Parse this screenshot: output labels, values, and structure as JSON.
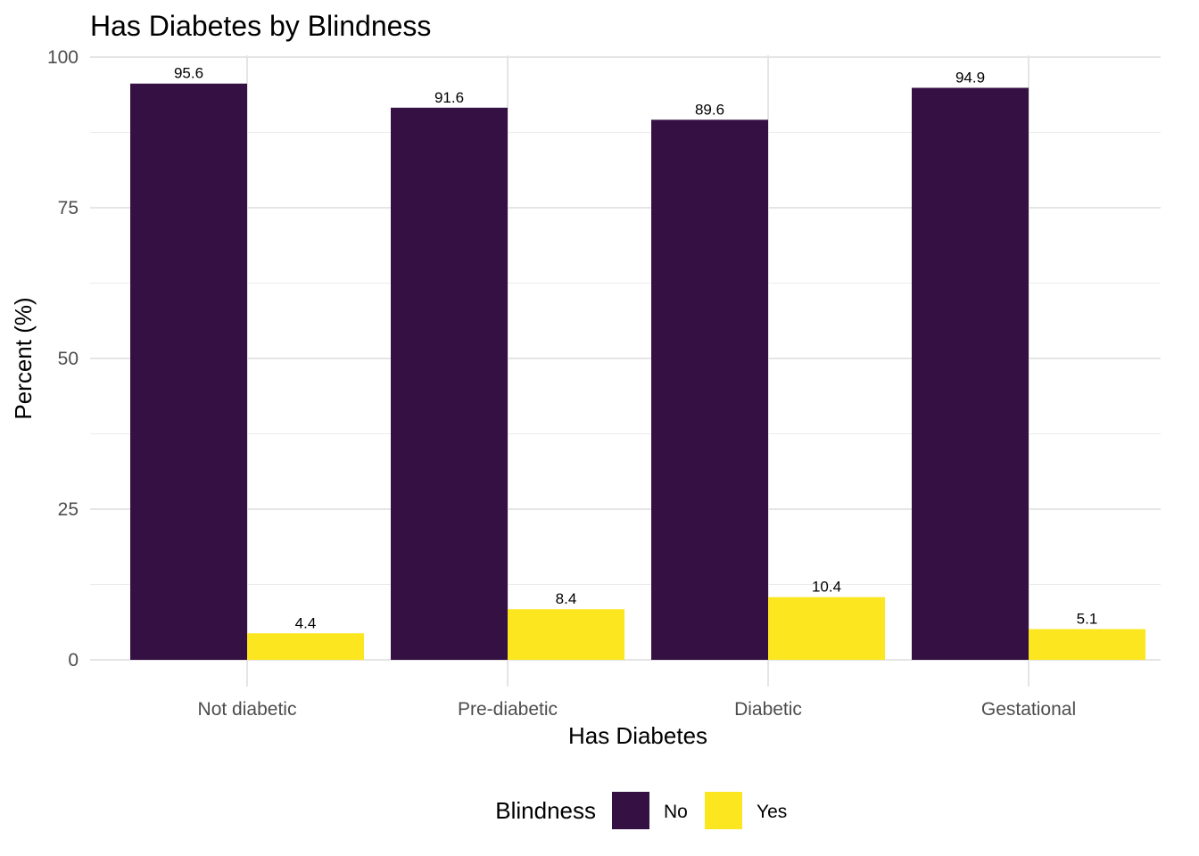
{
  "chart_data": {
    "type": "bar",
    "title": "Has Diabetes by Blindness",
    "xlabel": "Has Diabetes",
    "ylabel": "Percent (%)",
    "categories": [
      "Not diabetic",
      "Pre-diabetic",
      "Diabetic",
      "Gestational"
    ],
    "series": [
      {
        "name": "No",
        "color": "#351143",
        "values": [
          95.6,
          91.6,
          89.6,
          94.9
        ]
      },
      {
        "name": "Yes",
        "color": "#fbe620",
        "values": [
          4.4,
          8.4,
          10.4,
          5.1
        ]
      }
    ],
    "data_labels": [
      [
        "95.6",
        "91.6",
        "89.6",
        "94.9"
      ],
      [
        "4.4",
        "8.4",
        "10.4",
        "5.1"
      ]
    ],
    "ylim": [
      0,
      100
    ],
    "yticks": [
      0,
      25,
      50,
      75,
      100
    ],
    "yticks_labels": [
      "0",
      "25",
      "50",
      "75",
      "100"
    ],
    "grid": true,
    "legend": {
      "title": "Blindness",
      "position": "bottom"
    }
  }
}
